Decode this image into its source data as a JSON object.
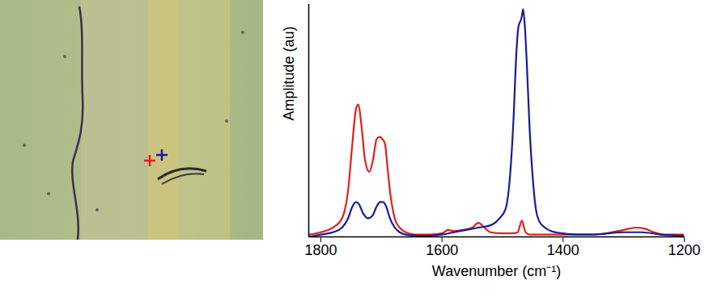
{
  "chart_data": {
    "type": "line",
    "x_label": "Wavenumber (cm⁻¹)",
    "y_label": "Amplitude (au)",
    "xlim": [
      1820,
      1200
    ],
    "xticks": [
      1800,
      1600,
      1400,
      1200
    ],
    "ylim": [
      0,
      1
    ],
    "yticks": [],
    "tick_labels": "x",
    "series": [
      {
        "color": "#e0201b",
        "x": [
          1820,
          1800,
          1780,
          1765,
          1755,
          1748,
          1742,
          1738,
          1733,
          1727,
          1720,
          1714,
          1708,
          1703,
          1698,
          1694,
          1690,
          1685,
          1678,
          1670,
          1660,
          1640,
          1620,
          1600,
          1590,
          1580,
          1565,
          1550,
          1540,
          1530,
          1520,
          1500,
          1485,
          1475,
          1468,
          1462,
          1455,
          1440,
          1420,
          1400,
          1380,
          1350,
          1320,
          1300,
          1280,
          1265,
          1250,
          1230,
          1200
        ],
        "values": [
          0.01,
          0.02,
          0.04,
          0.08,
          0.2,
          0.4,
          0.55,
          0.57,
          0.48,
          0.33,
          0.28,
          0.33,
          0.42,
          0.43,
          0.42,
          0.4,
          0.3,
          0.18,
          0.08,
          0.04,
          0.02,
          0.01,
          0.01,
          0.015,
          0.03,
          0.025,
          0.03,
          0.04,
          0.06,
          0.04,
          0.02,
          0.015,
          0.015,
          0.02,
          0.07,
          0.02,
          0.01,
          0.01,
          0.01,
          0.01,
          0.01,
          0.01,
          0.02,
          0.03,
          0.04,
          0.035,
          0.02,
          0.01,
          0.01
        ]
      },
      {
        "color": "#1a1a9c",
        "x": [
          1820,
          1800,
          1780,
          1765,
          1755,
          1748,
          1742,
          1737,
          1730,
          1722,
          1715,
          1708,
          1702,
          1697,
          1692,
          1686,
          1678,
          1670,
          1660,
          1640,
          1620,
          1600,
          1580,
          1560,
          1540,
          1520,
          1505,
          1495,
          1488,
          1482,
          1477,
          1474,
          1472,
          1470,
          1468,
          1466,
          1463,
          1460,
          1455,
          1450,
          1445,
          1440,
          1430,
          1420,
          1400,
          1380,
          1350,
          1300,
          1270,
          1240,
          1200
        ],
        "values": [
          0.0,
          0.01,
          0.02,
          0.04,
          0.08,
          0.13,
          0.15,
          0.14,
          0.1,
          0.08,
          0.09,
          0.13,
          0.15,
          0.15,
          0.13,
          0.08,
          0.04,
          0.02,
          0.01,
          0.005,
          0.005,
          0.01,
          0.02,
          0.03,
          0.04,
          0.05,
          0.08,
          0.12,
          0.25,
          0.5,
          0.8,
          0.9,
          0.92,
          0.93,
          0.95,
          0.98,
          0.9,
          0.75,
          0.45,
          0.25,
          0.12,
          0.07,
          0.04,
          0.025,
          0.015,
          0.01,
          0.01,
          0.02,
          0.02,
          0.01,
          0.005
        ]
      }
    ]
  }
}
